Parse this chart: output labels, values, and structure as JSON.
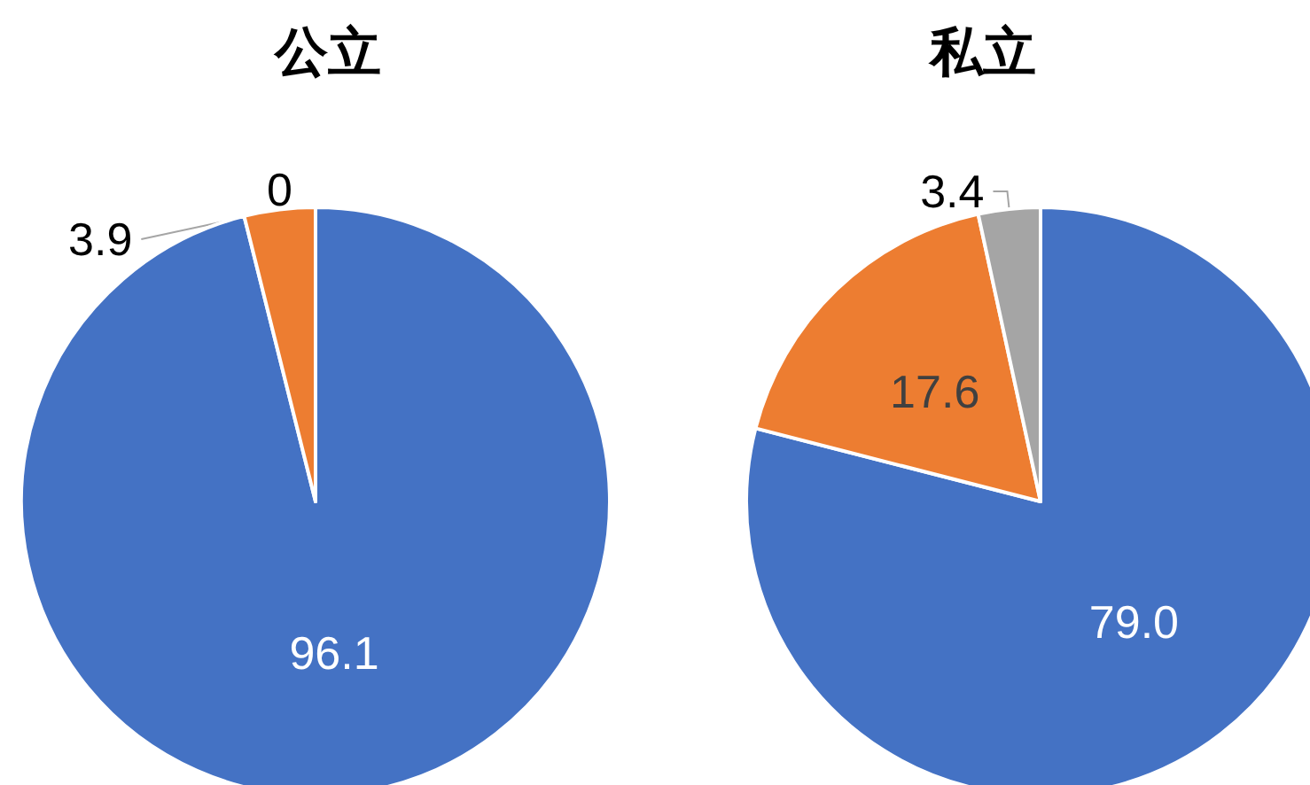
{
  "chart_data": [
    {
      "type": "pie",
      "title": "公立",
      "categories": [
        null,
        null,
        null
      ],
      "values": [
        96.1,
        3.9,
        0
      ],
      "colors": [
        "#4472c4",
        "#ed7d31",
        "#a5a5a5"
      ],
      "value_labels": [
        "96.1",
        "3.9",
        "0"
      ]
    },
    {
      "type": "pie",
      "title": "私立",
      "categories": [
        null,
        null,
        null
      ],
      "values": [
        79.0,
        17.6,
        3.4
      ],
      "colors": [
        "#4472c4",
        "#ed7d31",
        "#a5a5a5"
      ],
      "value_labels": [
        "79.0",
        "17.6",
        "3.4"
      ]
    }
  ]
}
